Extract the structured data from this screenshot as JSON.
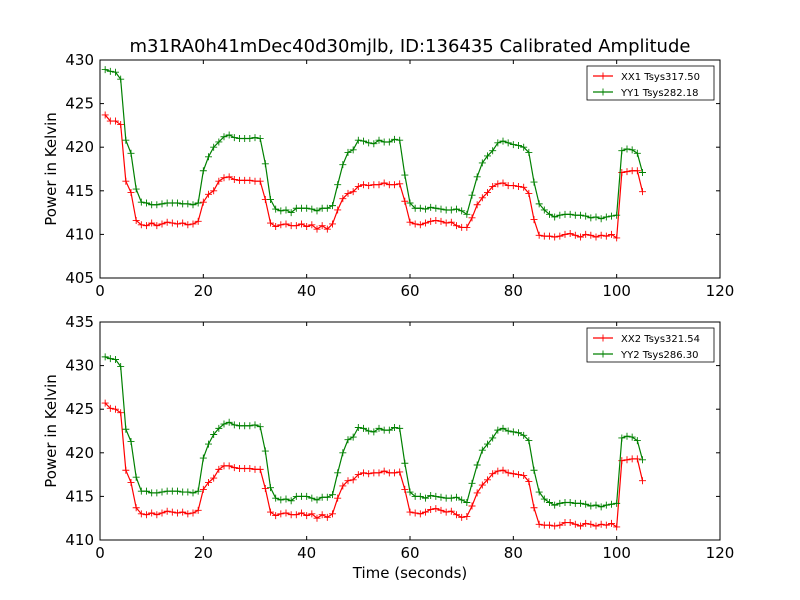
{
  "title": "m31RA0h41mDec40d30mjlb, ID:136435 Calibrated Amplitude",
  "xlabel": "Time (seconds)",
  "colors": {
    "red": "#ff0000",
    "green": "#008000",
    "axes": "#000000"
  },
  "chart_data": [
    {
      "type": "line",
      "ylabel": "Power in Kelvin",
      "xlim": [
        0,
        120
      ],
      "ylim": [
        405,
        430
      ],
      "xticks": [
        0,
        20,
        40,
        60,
        80,
        100,
        120
      ],
      "yticks": [
        405,
        410,
        415,
        420,
        425,
        430
      ],
      "legend": "top-right",
      "x": [
        1,
        2,
        3,
        4,
        5,
        6,
        7,
        8,
        9,
        10,
        11,
        12,
        13,
        14,
        15,
        16,
        17,
        18,
        19,
        20,
        21,
        22,
        23,
        24,
        25,
        26,
        27,
        28,
        29,
        30,
        31,
        32,
        33,
        34,
        35,
        36,
        37,
        38,
        39,
        40,
        41,
        42,
        43,
        44,
        45,
        46,
        47,
        48,
        49,
        50,
        51,
        52,
        53,
        54,
        55,
        56,
        57,
        58,
        59,
        60,
        61,
        62,
        63,
        64,
        65,
        66,
        67,
        68,
        69,
        70,
        71,
        72,
        73,
        74,
        75,
        76,
        77,
        78,
        79,
        80,
        81,
        82,
        83,
        84,
        85,
        86,
        87,
        88,
        89,
        90,
        91,
        92,
        93,
        94,
        95,
        96,
        97,
        98,
        99,
        100,
        101,
        102,
        103,
        104,
        105
      ],
      "series": [
        {
          "name": "XX1 Tsys317.50",
          "color": "#ff0000",
          "values": [
            423.7,
            423.0,
            423.0,
            422.6,
            416.1,
            414.8,
            411.6,
            411.1,
            411.0,
            411.3,
            411.0,
            411.2,
            411.4,
            411.3,
            411.2,
            411.3,
            411.1,
            411.2,
            411.5,
            413.7,
            414.6,
            415.0,
            416.1,
            416.5,
            416.6,
            416.3,
            416.2,
            416.2,
            416.2,
            416.1,
            416.1,
            414.0,
            411.3,
            410.9,
            411.1,
            411.2,
            411.0,
            411.0,
            411.2,
            410.9,
            411.1,
            410.6,
            411.0,
            410.6,
            411.2,
            412.8,
            414.1,
            414.7,
            414.9,
            415.5,
            415.7,
            415.6,
            415.7,
            415.7,
            415.9,
            415.7,
            415.7,
            415.8,
            413.8,
            411.4,
            411.2,
            411.1,
            411.3,
            411.5,
            411.6,
            411.5,
            411.3,
            411.4,
            411.0,
            410.8,
            410.8,
            411.9,
            413.4,
            414.2,
            414.8,
            415.5,
            415.8,
            415.9,
            415.6,
            415.6,
            415.5,
            415.4,
            414.7,
            411.7,
            409.9,
            409.8,
            409.8,
            409.7,
            409.8,
            410.0,
            410.1,
            409.9,
            409.7,
            410.0,
            409.9,
            409.7,
            409.9,
            409.8,
            410.0,
            409.6,
            417.1,
            417.2,
            417.3,
            417.3,
            414.9
          ]
        },
        {
          "name": "YY1 Tsys282.18",
          "color": "#008000",
          "values": [
            428.9,
            428.7,
            428.6,
            427.8,
            420.8,
            419.3,
            415.2,
            413.7,
            413.6,
            413.4,
            413.4,
            413.5,
            413.6,
            413.6,
            413.6,
            413.5,
            413.5,
            413.4,
            413.6,
            417.3,
            418.9,
            420.0,
            420.6,
            421.2,
            421.4,
            421.1,
            421.0,
            421.0,
            421.0,
            421.1,
            421.0,
            418.1,
            414.0,
            412.9,
            412.7,
            412.8,
            412.5,
            413.0,
            413.0,
            413.0,
            412.9,
            412.7,
            413.0,
            413.0,
            413.3,
            415.7,
            418.0,
            419.4,
            419.7,
            420.8,
            420.7,
            420.5,
            420.4,
            420.8,
            420.6,
            420.6,
            420.9,
            420.8,
            416.8,
            413.6,
            413.0,
            413.0,
            412.9,
            413.1,
            413.0,
            412.9,
            412.8,
            412.8,
            412.9,
            412.7,
            412.3,
            414.5,
            416.6,
            418.2,
            419.0,
            419.6,
            420.5,
            420.7,
            420.5,
            420.3,
            420.2,
            420.0,
            419.4,
            416.0,
            413.5,
            412.8,
            412.3,
            412.0,
            412.2,
            412.3,
            412.3,
            412.2,
            412.2,
            412.1,
            411.9,
            412.0,
            411.8,
            412.0,
            412.1,
            412.2,
            419.6,
            419.8,
            419.7,
            419.3,
            417.1
          ]
        }
      ]
    },
    {
      "type": "line",
      "ylabel": "Power in Kelvin",
      "xlabel": "Time (seconds)",
      "xlim": [
        0,
        120
      ],
      "ylim": [
        410,
        435
      ],
      "xticks": [
        0,
        20,
        40,
        60,
        80,
        100,
        120
      ],
      "yticks": [
        410,
        415,
        420,
        425,
        430,
        435
      ],
      "legend": "top-right",
      "x": [
        1,
        2,
        3,
        4,
        5,
        6,
        7,
        8,
        9,
        10,
        11,
        12,
        13,
        14,
        15,
        16,
        17,
        18,
        19,
        20,
        21,
        22,
        23,
        24,
        25,
        26,
        27,
        28,
        29,
        30,
        31,
        32,
        33,
        34,
        35,
        36,
        37,
        38,
        39,
        40,
        41,
        42,
        43,
        44,
        45,
        46,
        47,
        48,
        49,
        50,
        51,
        52,
        53,
        54,
        55,
        56,
        57,
        58,
        59,
        60,
        61,
        62,
        63,
        64,
        65,
        66,
        67,
        68,
        69,
        70,
        71,
        72,
        73,
        74,
        75,
        76,
        77,
        78,
        79,
        80,
        81,
        82,
        83,
        84,
        85,
        86,
        87,
        88,
        89,
        90,
        91,
        92,
        93,
        94,
        95,
        96,
        97,
        98,
        99,
        100,
        101,
        102,
        103,
        104,
        105
      ],
      "series": [
        {
          "name": "XX2 Tsys321.54",
          "color": "#ff0000",
          "values": [
            425.7,
            425.1,
            425.0,
            424.6,
            418.0,
            416.6,
            413.7,
            413.0,
            412.9,
            413.1,
            412.9,
            413.1,
            413.3,
            413.2,
            413.1,
            413.2,
            413.0,
            413.1,
            413.4,
            415.8,
            416.6,
            417.1,
            418.1,
            418.5,
            418.5,
            418.3,
            418.2,
            418.2,
            418.2,
            418.1,
            418.1,
            415.9,
            413.2,
            412.8,
            413.0,
            413.1,
            412.9,
            412.9,
            413.1,
            412.8,
            413.0,
            412.5,
            412.9,
            412.6,
            413.0,
            414.8,
            416.2,
            416.8,
            416.9,
            417.5,
            417.7,
            417.6,
            417.7,
            417.7,
            417.9,
            417.7,
            417.7,
            417.8,
            415.8,
            413.2,
            413.1,
            413.0,
            413.2,
            413.5,
            413.6,
            413.4,
            413.2,
            413.3,
            412.9,
            412.6,
            412.7,
            413.9,
            415.4,
            416.3,
            416.9,
            417.6,
            417.9,
            418.0,
            417.7,
            417.6,
            417.5,
            417.4,
            416.7,
            413.7,
            411.8,
            411.7,
            411.7,
            411.6,
            411.7,
            412.0,
            412.0,
            411.8,
            411.6,
            411.9,
            411.8,
            411.6,
            411.8,
            411.7,
            411.9,
            411.5,
            419.1,
            419.2,
            419.3,
            419.3,
            416.8
          ]
        },
        {
          "name": "YY2 Tsys286.30",
          "color": "#008000",
          "values": [
            431.0,
            430.8,
            430.7,
            429.9,
            422.7,
            421.3,
            417.2,
            415.6,
            415.6,
            415.4,
            415.4,
            415.5,
            415.6,
            415.6,
            415.6,
            415.5,
            415.5,
            415.4,
            415.6,
            419.4,
            421.0,
            422.1,
            422.8,
            423.3,
            423.5,
            423.2,
            423.1,
            423.1,
            423.1,
            423.2,
            423.0,
            420.2,
            416.0,
            414.8,
            414.6,
            414.7,
            414.5,
            415.0,
            415.0,
            415.0,
            414.8,
            414.6,
            414.9,
            414.9,
            415.2,
            417.7,
            420.0,
            421.5,
            421.8,
            422.9,
            422.8,
            422.5,
            422.4,
            422.8,
            422.6,
            422.6,
            422.9,
            422.8,
            418.8,
            415.5,
            415.0,
            415.0,
            414.8,
            415.1,
            415.0,
            414.9,
            414.8,
            414.8,
            414.9,
            414.6,
            414.3,
            416.5,
            418.6,
            420.3,
            421.0,
            421.7,
            422.6,
            422.8,
            422.5,
            422.4,
            422.3,
            422.0,
            421.4,
            418.0,
            415.5,
            414.7,
            414.3,
            414.0,
            414.2,
            414.3,
            414.3,
            414.2,
            414.2,
            414.1,
            413.9,
            414.0,
            413.8,
            414.0,
            414.1,
            414.2,
            421.7,
            421.9,
            421.8,
            421.4,
            419.2
          ]
        }
      ]
    }
  ]
}
